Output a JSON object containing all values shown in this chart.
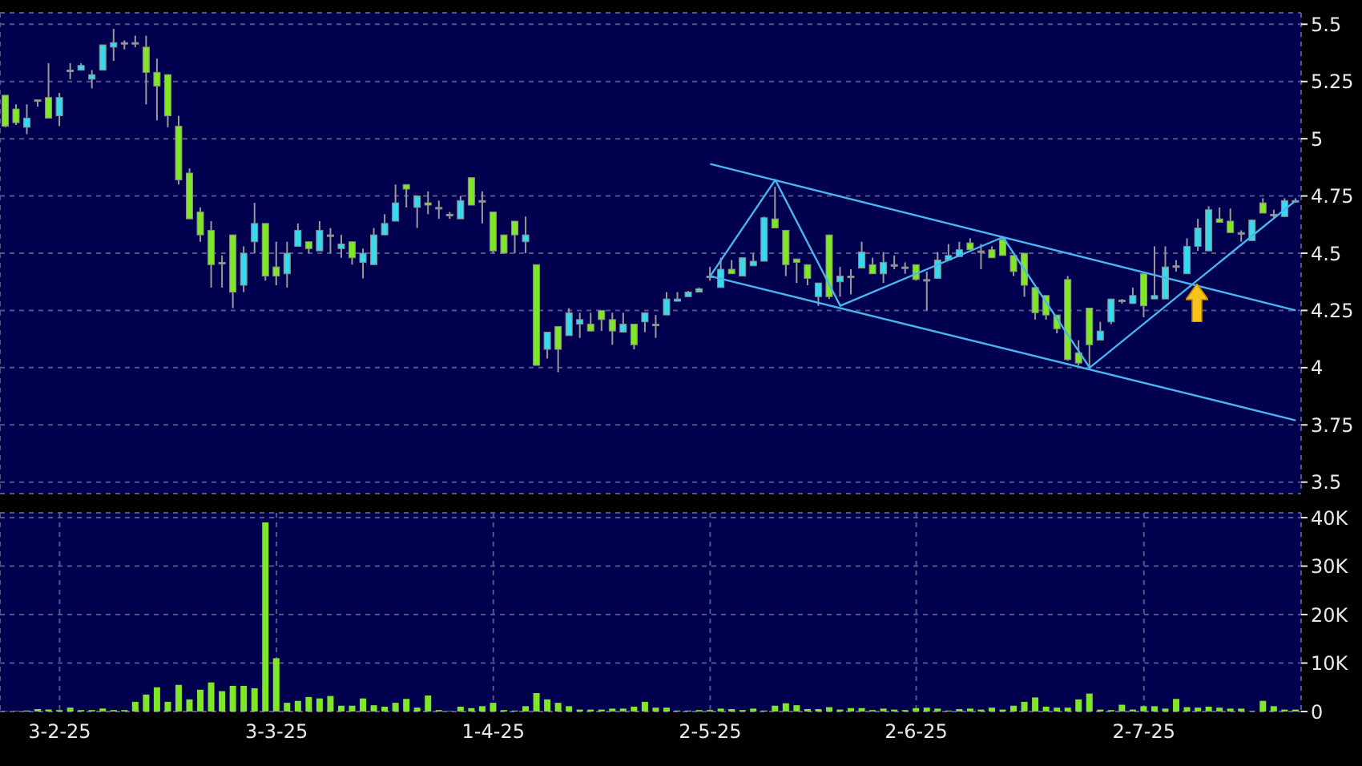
{
  "chart_data": [
    {
      "type": "candlestick",
      "categories": [
        null,
        null,
        null,
        null,
        null,
        null,
        null,
        null,
        null,
        null,
        null,
        null,
        null,
        null,
        null,
        null,
        null,
        null,
        null,
        null,
        null,
        null,
        null,
        null,
        null,
        null,
        null,
        null,
        null,
        null,
        null,
        null,
        null,
        null,
        null,
        null,
        null,
        null,
        null,
        null,
        null,
        null,
        null,
        null,
        null,
        null,
        null,
        null,
        null,
        null,
        null,
        null,
        null,
        null,
        null,
        null,
        null,
        null,
        null,
        null,
        null,
        null,
        null,
        null,
        null,
        null,
        null,
        null,
        null,
        null,
        null,
        null,
        null,
        null,
        null,
        null,
        null,
        null,
        null,
        null,
        null,
        null,
        null,
        null,
        null,
        null,
        null,
        null,
        null,
        null,
        null,
        null,
        null,
        null,
        null,
        null,
        null,
        null,
        null,
        null,
        null,
        null,
        null,
        null,
        null,
        null,
        null,
        null,
        null,
        null,
        null,
        null,
        null,
        null,
        null,
        null,
        null,
        null,
        null,
        null
      ],
      "ohlc": [
        [
          5.19,
          5.19,
          5.05,
          5.055
        ],
        [
          5.13,
          5.15,
          5.06,
          5.07
        ],
        [
          5.05,
          5.15,
          5.02,
          5.09
        ],
        [
          5.17,
          5.17,
          5.14,
          5.17
        ],
        [
          5.18,
          5.33,
          5.09,
          5.09
        ],
        [
          5.1,
          5.2,
          5.055,
          5.18
        ],
        [
          5.3,
          5.33,
          5.26,
          5.3
        ],
        [
          5.3,
          5.33,
          5.3,
          5.32
        ],
        [
          5.26,
          5.3,
          5.22,
          5.28
        ],
        [
          5.3,
          5.41,
          5.3,
          5.41
        ],
        [
          5.4,
          5.48,
          5.34,
          5.42
        ],
        [
          5.42,
          5.43,
          5.39,
          5.42
        ],
        [
          5.42,
          5.45,
          5.4,
          5.42
        ],
        [
          5.4,
          5.45,
          5.15,
          5.29
        ],
        [
          5.29,
          5.35,
          5.08,
          5.23
        ],
        [
          5.28,
          5.28,
          5.05,
          5.1
        ],
        [
          5.055,
          5.1,
          4.8,
          4.82
        ],
        [
          4.85,
          4.87,
          4.65,
          4.65
        ],
        [
          4.68,
          4.7,
          4.55,
          4.58
        ],
        [
          4.6,
          4.64,
          4.35,
          4.45
        ],
        [
          4.46,
          4.49,
          4.35,
          4.46
        ],
        [
          4.58,
          4.58,
          4.26,
          4.33
        ],
        [
          4.36,
          4.53,
          4.33,
          4.5
        ],
        [
          4.55,
          4.72,
          4.5,
          4.63
        ],
        [
          4.63,
          4.63,
          4.38,
          4.4
        ],
        [
          4.44,
          4.55,
          4.36,
          4.4
        ],
        [
          4.41,
          4.55,
          4.35,
          4.5
        ],
        [
          4.53,
          4.63,
          4.53,
          4.6
        ],
        [
          4.55,
          4.55,
          4.5,
          4.52
        ],
        [
          4.51,
          4.64,
          4.51,
          4.6
        ],
        [
          4.58,
          4.61,
          4.5,
          4.58
        ],
        [
          4.52,
          4.58,
          4.48,
          4.54
        ],
        [
          4.55,
          4.55,
          4.45,
          4.48
        ],
        [
          4.46,
          4.52,
          4.39,
          4.5
        ],
        [
          4.45,
          4.61,
          4.45,
          4.58
        ],
        [
          4.58,
          4.67,
          4.58,
          4.63
        ],
        [
          4.64,
          4.8,
          4.64,
          4.72
        ],
        [
          4.8,
          4.8,
          4.7,
          4.78
        ],
        [
          4.7,
          4.75,
          4.61,
          4.75
        ],
        [
          4.72,
          4.77,
          4.67,
          4.71
        ],
        [
          4.7,
          4.73,
          4.65,
          4.7
        ],
        [
          4.67,
          4.68,
          4.65,
          4.67
        ],
        [
          4.65,
          4.75,
          4.65,
          4.73
        ],
        [
          4.83,
          4.83,
          4.71,
          4.71
        ],
        [
          4.73,
          4.77,
          4.63,
          4.73
        ],
        [
          4.68,
          4.68,
          4.5,
          4.51
        ],
        [
          4.58,
          4.58,
          4.5,
          4.5
        ],
        [
          4.64,
          4.64,
          4.5,
          4.58
        ],
        [
          4.55,
          4.66,
          4.5,
          4.58
        ],
        [
          4.45,
          4.45,
          4.01,
          4.01
        ],
        [
          4.08,
          4.155,
          4.04,
          4.155
        ],
        [
          4.18,
          4.18,
          3.98,
          4.08
        ],
        [
          4.14,
          4.26,
          4.14,
          4.24
        ],
        [
          4.19,
          4.24,
          4.13,
          4.21
        ],
        [
          4.19,
          4.24,
          4.16,
          4.16
        ],
        [
          4.25,
          4.25,
          4.16,
          4.21
        ],
        [
          4.21,
          4.24,
          4.1,
          4.16
        ],
        [
          4.155,
          4.24,
          4.155,
          4.19
        ],
        [
          4.19,
          4.19,
          4.08,
          4.1
        ],
        [
          4.2,
          4.24,
          4.155,
          4.24
        ],
        [
          4.19,
          4.23,
          4.13,
          4.19
        ],
        [
          4.23,
          4.33,
          4.23,
          4.3
        ],
        [
          4.29,
          4.33,
          4.29,
          4.3
        ],
        [
          4.31,
          4.335,
          4.31,
          4.33
        ],
        [
          4.33,
          4.35,
          4.33,
          4.345
        ],
        [
          4.4,
          4.44,
          4.38,
          4.4
        ],
        [
          4.35,
          4.48,
          4.35,
          4.43
        ],
        [
          4.43,
          4.47,
          4.41,
          4.41
        ],
        [
          4.4,
          4.48,
          4.4,
          4.48
        ],
        [
          4.445,
          4.5,
          4.445,
          4.465
        ],
        [
          4.465,
          4.66,
          4.465,
          4.655
        ],
        [
          4.65,
          4.79,
          4.61,
          4.61
        ],
        [
          4.6,
          4.6,
          4.4,
          4.45
        ],
        [
          4.475,
          4.475,
          4.37,
          4.46
        ],
        [
          4.45,
          4.45,
          4.36,
          4.39
        ],
        [
          4.31,
          4.37,
          4.27,
          4.37
        ],
        [
          4.58,
          4.58,
          4.3,
          4.31
        ],
        [
          4.375,
          4.44,
          4.31,
          4.4
        ],
        [
          4.4,
          4.43,
          4.32,
          4.4
        ],
        [
          4.435,
          4.55,
          4.435,
          4.505
        ],
        [
          4.45,
          4.48,
          4.41,
          4.41
        ],
        [
          4.41,
          4.505,
          4.37,
          4.46
        ],
        [
          4.45,
          4.49,
          4.43,
          4.45
        ],
        [
          4.44,
          4.46,
          4.41,
          4.44
        ],
        [
          4.45,
          4.45,
          4.38,
          4.385
        ],
        [
          4.385,
          4.42,
          4.25,
          4.385
        ],
        [
          4.39,
          4.505,
          4.39,
          4.47
        ],
        [
          4.47,
          4.54,
          4.47,
          4.49
        ],
        [
          4.485,
          4.55,
          4.485,
          4.515
        ],
        [
          4.545,
          4.565,
          4.515,
          4.515
        ],
        [
          4.51,
          4.54,
          4.43,
          4.51
        ],
        [
          4.515,
          4.53,
          4.48,
          4.48
        ],
        [
          4.56,
          4.575,
          4.49,
          4.49
        ],
        [
          4.49,
          4.49,
          4.4,
          4.42
        ],
        [
          4.5,
          4.5,
          4.31,
          4.36
        ],
        [
          4.35,
          4.35,
          4.21,
          4.24
        ],
        [
          4.315,
          4.315,
          4.21,
          4.23
        ],
        [
          4.23,
          4.23,
          4.15,
          4.17
        ],
        [
          4.385,
          4.4,
          4.03,
          4.035
        ],
        [
          4.065,
          4.12,
          4.01,
          4.02
        ],
        [
          4.26,
          4.26,
          4.0,
          4.1
        ],
        [
          4.12,
          4.2,
          4.12,
          4.16
        ],
        [
          4.2,
          4.3,
          4.19,
          4.3
        ],
        [
          4.295,
          4.3,
          4.28,
          4.295
        ],
        [
          4.28,
          4.35,
          4.28,
          4.315
        ],
        [
          4.41,
          4.41,
          4.22,
          4.27
        ],
        [
          4.3,
          4.53,
          4.3,
          4.315
        ],
        [
          4.3,
          4.53,
          4.3,
          4.44
        ],
        [
          4.445,
          4.47,
          4.42,
          4.445
        ],
        [
          4.41,
          4.565,
          4.41,
          4.53
        ],
        [
          4.53,
          4.65,
          4.51,
          4.61
        ],
        [
          4.51,
          4.705,
          4.51,
          4.69
        ],
        [
          4.65,
          4.7,
          4.635,
          4.635
        ],
        [
          4.64,
          4.695,
          4.59,
          4.59
        ],
        [
          4.59,
          4.6,
          4.55,
          4.59
        ],
        [
          4.555,
          4.645,
          4.555,
          4.645
        ],
        [
          4.72,
          4.74,
          4.675,
          4.675
        ],
        [
          4.67,
          4.69,
          4.65,
          4.67
        ],
        [
          4.66,
          4.74,
          4.66,
          4.73
        ],
        [
          4.73,
          4.74,
          4.72,
          4.73
        ]
      ],
      "colors": [
        "#80e628",
        "#80e628",
        "#38d8ee",
        "#a0a0a0",
        "#80e628",
        "#38d8ee",
        "#a0a0a0",
        "#38d8ee",
        "#38d8ee",
        "#38d8ee",
        "#38d8ee",
        "#a0a0a0",
        "#a0a0a0",
        "#80e628",
        "#80e628",
        "#80e628",
        "#80e628",
        "#80e628",
        "#80e628",
        "#80e628",
        "#a0a0a0",
        "#80e628",
        "#38d8ee",
        "#38d8ee",
        "#80e628",
        "#80e628",
        "#38d8ee",
        "#38d8ee",
        "#80e628",
        "#38d8ee",
        "#a0a0a0",
        "#38d8ee",
        "#80e628",
        "#38d8ee",
        "#38d8ee",
        "#38d8ee",
        "#38d8ee",
        "#80e628",
        "#38d8ee",
        "#80e628",
        "#a0a0a0",
        "#a0a0a0",
        "#38d8ee",
        "#80e628",
        "#a0a0a0",
        "#80e628",
        "#80e628",
        "#80e628",
        "#38d8ee",
        "#80e628",
        "#38d8ee",
        "#80e628",
        "#38d8ee",
        "#38d8ee",
        "#80e628",
        "#80e628",
        "#80e628",
        "#38d8ee",
        "#80e628",
        "#38d8ee",
        "#a0a0a0",
        "#38d8ee",
        "#38d8ee",
        "#38d8ee",
        "#38d8ee",
        "#a0a0a0",
        "#38d8ee",
        "#80e628",
        "#38d8ee",
        "#38d8ee",
        "#38d8ee",
        "#80e628",
        "#80e628",
        "#80e628",
        "#80e628",
        "#38d8ee",
        "#80e628",
        "#38d8ee",
        "#a0a0a0",
        "#38d8ee",
        "#80e628",
        "#38d8ee",
        "#a0a0a0",
        "#a0a0a0",
        "#80e628",
        "#a0a0a0",
        "#38d8ee",
        "#38d8ee",
        "#38d8ee",
        "#80e628",
        "#a0a0a0",
        "#80e628",
        "#80e628",
        "#80e628",
        "#80e628",
        "#80e628",
        "#80e628",
        "#80e628",
        "#80e628",
        "#80e628",
        "#80e628",
        "#38d8ee",
        "#38d8ee",
        "#a0a0a0",
        "#38d8ee",
        "#80e628",
        "#38d8ee",
        "#38d8ee",
        "#a0a0a0",
        "#38d8ee",
        "#38d8ee",
        "#38d8ee",
        "#80e628",
        "#80e628",
        "#a0a0a0",
        "#38d8ee",
        "#80e628",
        "#a0a0a0",
        "#38d8ee",
        "#a0a0a0"
      ],
      "series": [
        {
          "type": "line",
          "color": "#48b4f0",
          "values": [
            null,
            null,
            null,
            null,
            null,
            null,
            null,
            null,
            null,
            null,
            null,
            null,
            null,
            null,
            null,
            null,
            null,
            null,
            null,
            null,
            null,
            null,
            null,
            null,
            null,
            null,
            null,
            null,
            null,
            null,
            null,
            null,
            null,
            null,
            null,
            null,
            null,
            null,
            null,
            null,
            null,
            null,
            null,
            null,
            null,
            null,
            null,
            null,
            null,
            null,
            null,
            null,
            null,
            null,
            null,
            null,
            null,
            null,
            null,
            null,
            null,
            null,
            null,
            null,
            null,
            4.89,
            null,
            null,
            null,
            null,
            null,
            null,
            null,
            null,
            null,
            null,
            null,
            null,
            null,
            null,
            null,
            null,
            null,
            null,
            null,
            null,
            null,
            null,
            null,
            null,
            null,
            null,
            null,
            null,
            null,
            null,
            null,
            null,
            null,
            null,
            null,
            null,
            null,
            null,
            null,
            null,
            null,
            null,
            null,
            null,
            null,
            null,
            null,
            null,
            null,
            null,
            null,
            null,
            null,
            4.25
          ]
        },
        {
          "type": "line",
          "color": "#48b4f0",
          "values": [
            null,
            null,
            null,
            null,
            null,
            null,
            null,
            null,
            null,
            null,
            null,
            null,
            null,
            null,
            null,
            null,
            null,
            null,
            null,
            null,
            null,
            null,
            null,
            null,
            null,
            null,
            null,
            null,
            null,
            null,
            null,
            null,
            null,
            null,
            null,
            null,
            null,
            null,
            null,
            null,
            null,
            null,
            null,
            null,
            null,
            null,
            null,
            null,
            null,
            null,
            null,
            null,
            null,
            null,
            null,
            null,
            null,
            null,
            null,
            null,
            null,
            null,
            null,
            null,
            null,
            4.4,
            null,
            null,
            null,
            null,
            null,
            null,
            null,
            null,
            null,
            null,
            null,
            null,
            null,
            null,
            null,
            null,
            null,
            null,
            null,
            null,
            null,
            null,
            null,
            null,
            null,
            null,
            null,
            null,
            null,
            null,
            null,
            null,
            null,
            null,
            null,
            null,
            null,
            null,
            null,
            null,
            null,
            null,
            null,
            null,
            null,
            null,
            null,
            null,
            null,
            null,
            null,
            null,
            null,
            3.77
          ]
        },
        {
          "type": "line",
          "color": "#48b4f0",
          "values": [
            null,
            null,
            null,
            null,
            null,
            null,
            null,
            null,
            null,
            null,
            null,
            null,
            null,
            null,
            null,
            null,
            null,
            null,
            null,
            null,
            null,
            null,
            null,
            null,
            null,
            null,
            null,
            null,
            null,
            null,
            null,
            null,
            null,
            null,
            null,
            null,
            null,
            null,
            null,
            null,
            null,
            null,
            null,
            null,
            null,
            null,
            null,
            null,
            null,
            null,
            null,
            null,
            null,
            null,
            null,
            null,
            null,
            null,
            null,
            null,
            null,
            null,
            null,
            null,
            null,
            4.4,
            null,
            null,
            null,
            null,
            null,
            4.82,
            null,
            null,
            null,
            null,
            null,
            4.27,
            null,
            null,
            null,
            null,
            null,
            null,
            null,
            null,
            null,
            null,
            null,
            null,
            null,
            null,
            4.57,
            null,
            null,
            null,
            null,
            null,
            null,
            null,
            4.0,
            null,
            null,
            null,
            null,
            null,
            null,
            null,
            null,
            null,
            null,
            null,
            null,
            null,
            null,
            null,
            null,
            null,
            null,
            4.73
          ]
        }
      ],
      "ylim": [
        3.45,
        5.55
      ],
      "yticks": [
        3.5,
        3.75,
        4,
        4.25,
        4.5,
        4.75,
        5,
        5.25,
        5.5
      ],
      "grid": true,
      "tick_labels": "y"
    },
    {
      "type": "bar",
      "categories": [
        null,
        null,
        null,
        null,
        null,
        "3-2-25",
        null,
        null,
        null,
        null,
        null,
        null,
        null,
        null,
        null,
        null,
        null,
        null,
        null,
        null,
        null,
        null,
        null,
        null,
        null,
        "3-3-25",
        null,
        null,
        null,
        null,
        null,
        null,
        null,
        null,
        null,
        null,
        null,
        null,
        null,
        null,
        null,
        null,
        null,
        null,
        null,
        "1-4-25",
        null,
        null,
        null,
        null,
        null,
        null,
        null,
        null,
        null,
        null,
        null,
        null,
        null,
        null,
        null,
        null,
        null,
        null,
        null,
        "2-5-25",
        null,
        null,
        null,
        null,
        null,
        null,
        null,
        null,
        null,
        null,
        null,
        null,
        null,
        null,
        null,
        null,
        null,
        null,
        "2-6-25",
        null,
        null,
        null,
        null,
        null,
        null,
        null,
        null,
        null,
        null,
        null,
        null,
        null,
        null,
        null,
        null,
        null,
        null,
        null,
        null,
        "2-7-25",
        null,
        null,
        null,
        null,
        null,
        null,
        null,
        null,
        null,
        null,
        null,
        null,
        null,
        null
      ],
      "values": [
        100,
        100,
        200,
        500,
        400,
        300,
        800,
        300,
        300,
        600,
        300,
        300,
        2000,
        3500,
        5000,
        2000,
        5500,
        2500,
        4500,
        6000,
        4200,
        5300,
        5300,
        4800,
        39000,
        11000,
        1800,
        2200,
        3000,
        2700,
        3200,
        1200,
        1200,
        2700,
        1300,
        1000,
        1800,
        2600,
        800,
        3300,
        300,
        100,
        1000,
        700,
        1100,
        1800,
        300,
        200,
        1100,
        3800,
        2500,
        1800,
        1100,
        400,
        400,
        400,
        600,
        600,
        1000,
        2000,
        800,
        800,
        200,
        200,
        300,
        300,
        600,
        500,
        300,
        600,
        200,
        1200,
        1700,
        1300,
        500,
        500,
        900,
        400,
        700,
        700,
        300,
        600,
        400,
        300,
        700,
        800,
        600,
        200,
        500,
        600,
        400,
        800,
        400,
        1200,
        2000,
        2900,
        1000,
        800,
        800,
        2500,
        3700,
        400,
        300,
        1400,
        400,
        1100,
        1100,
        600,
        2600,
        900,
        800,
        1000,
        800,
        600,
        600,
        100,
        2200,
        1100,
        400,
        400
      ],
      "color": "#80e628",
      "ylim": [
        0,
        41000
      ],
      "yticks": [
        0,
        {
          "value": 10000,
          "label": "10K"
        },
        {
          "value": 20000,
          "label": "20K"
        },
        {
          "value": 30000,
          "label": "30K"
        },
        {
          "value": 40000,
          "label": "40K"
        }
      ],
      "grid": true
    }
  ]
}
